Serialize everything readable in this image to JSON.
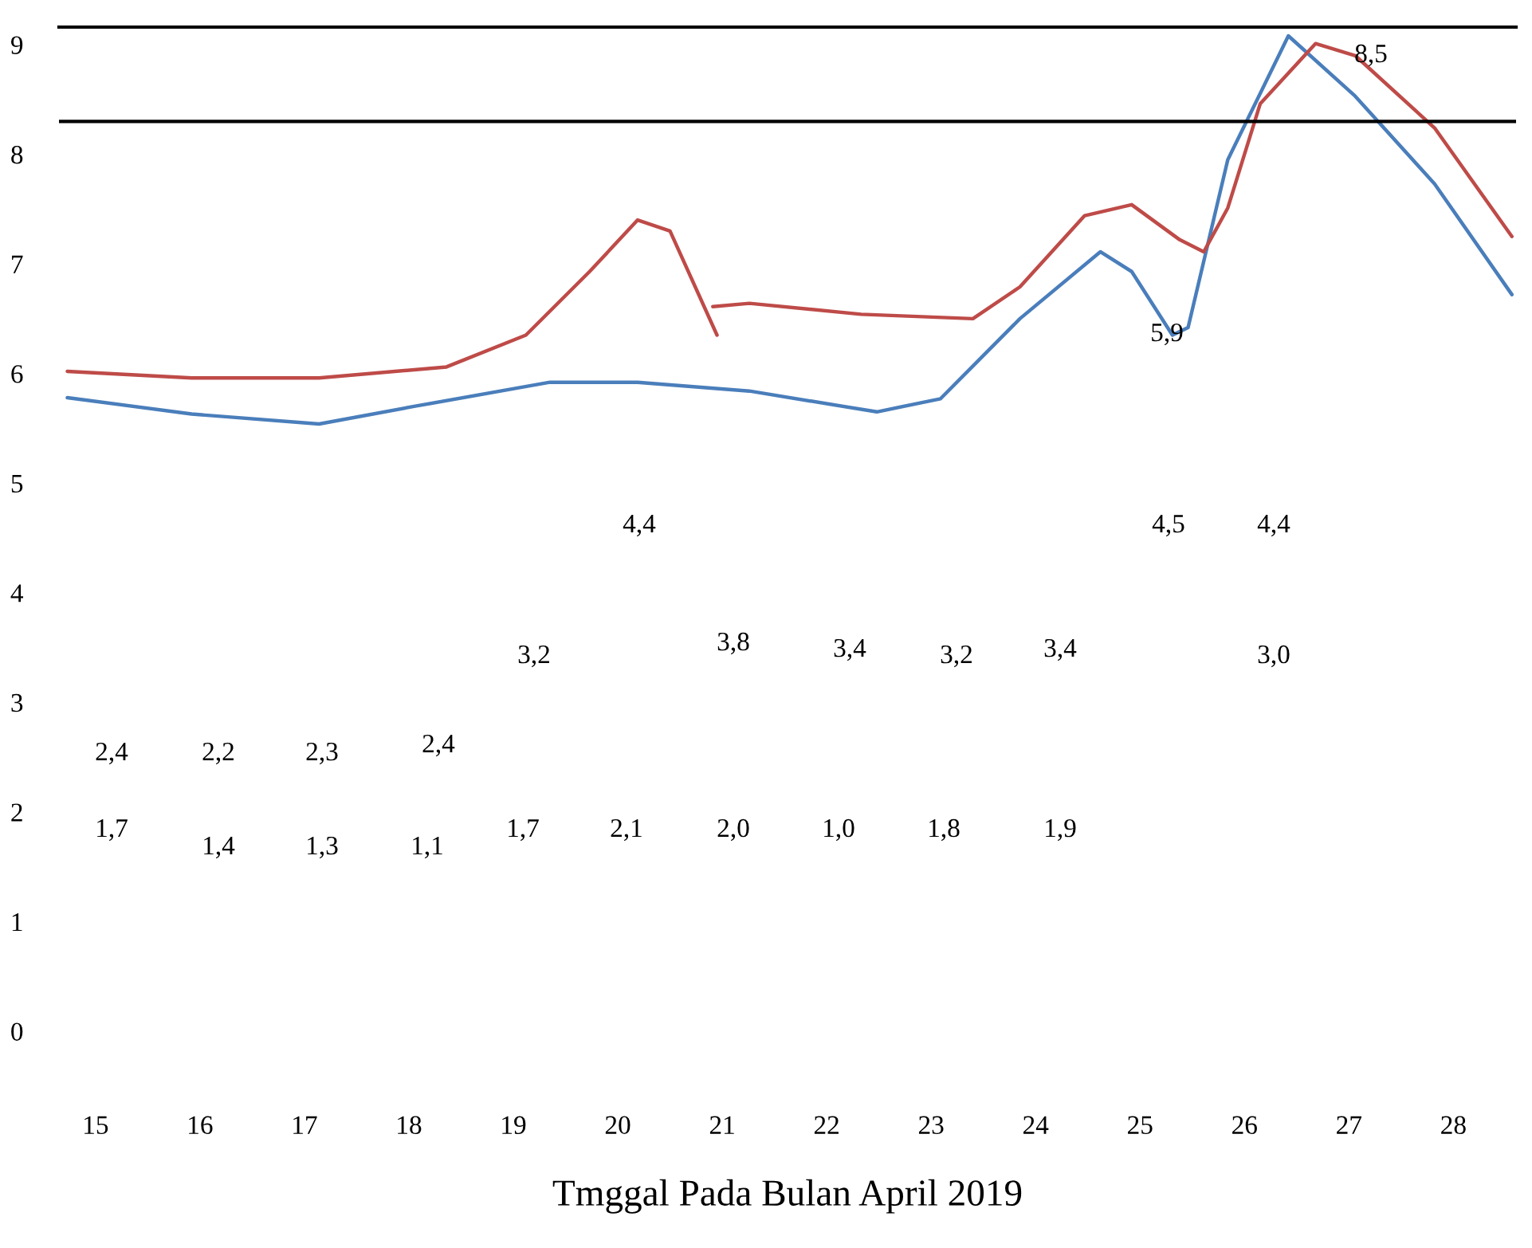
{
  "chart_data": {
    "type": "line",
    "xlabel": "Tmggal Pada Bulan April 2019",
    "xlim": [
      14.65,
      28.6
    ],
    "xticks": [
      15,
      16,
      17,
      18,
      19,
      20,
      21,
      22,
      23,
      24,
      25,
      26,
      27,
      28
    ],
    "ylim": [
      0,
      9.16
    ],
    "yticks": [
      0,
      1,
      2,
      3,
      4,
      5,
      6,
      7,
      8,
      9
    ],
    "grid": false,
    "legend": false,
    "marker": "none",
    "line_style": "solid",
    "series": [
      {
        "color": "#4a7ebb",
        "x": [
          14.73,
          15.92,
          17.14,
          18.05,
          19.35,
          20.19,
          21.26,
          22.48,
          23.09,
          23.85,
          24.62,
          24.92,
          25.31,
          25.46,
          25.84,
          26.42,
          27.06,
          27.82,
          28.56
        ],
        "values": [
          5.78,
          5.63,
          5.54,
          5.7,
          5.92,
          5.92,
          5.84,
          5.65,
          5.77,
          6.5,
          7.11,
          6.93,
          6.35,
          6.42,
          7.95,
          9.08,
          8.53,
          7.73,
          6.72
        ]
      },
      {
        "color": "#be4b48",
        "x": [
          14.73,
          15.92,
          17.14,
          18.36,
          19.12,
          19.73,
          20.19,
          20.5,
          20.95,
          20.93,
          20.91,
          21.26,
          22.33,
          23.4,
          23.85,
          24.47,
          24.92,
          25.38,
          25.61,
          25.84,
          26.15,
          26.68,
          27.06,
          27.82,
          28.56
        ],
        "values": [
          6.02,
          5.96,
          5.96,
          6.06,
          6.35,
          6.93,
          7.4,
          7.3,
          6.35,
          null,
          6.61,
          6.64,
          6.54,
          6.5,
          6.79,
          7.44,
          7.54,
          7.22,
          7.11,
          7.51,
          8.46,
          9.01,
          8.9,
          8.24,
          7.25
        ]
      }
    ],
    "ref_lines": [
      {
        "axis": "y",
        "value": 8.3,
        "color": "#000000"
      }
    ],
    "annotations": [
      "2,4",
      "2,2",
      "2,3",
      "2,4",
      "1,7",
      "1,4",
      "1,3",
      "1,1",
      "1,7",
      "2,1",
      "2,0",
      "1,0",
      "1,8",
      "1,9",
      "3,2",
      "4,4",
      "3,8",
      "3,4",
      "3,2",
      "3,4",
      "4,5",
      "4,4",
      "3,0",
      "5,9",
      "8,5"
    ]
  }
}
